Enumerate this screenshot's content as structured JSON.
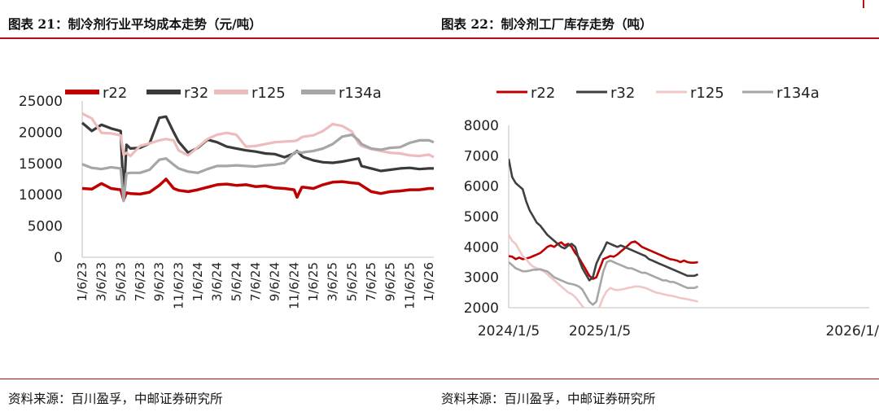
{
  "titles": {
    "left": "图表 21：制冷剂行业平均成本走势（元/吨）",
    "right": "图表 22：制冷剂工厂库存走势（吨）"
  },
  "sources": {
    "left": "资料来源：百川盈孚，中邮证券研究所",
    "right": "资料来源：百川盈孚，中邮证券研究所"
  },
  "chart_data": [
    {
      "type": "line",
      "title": "图表 21：制冷剂行业平均成本走势（元/吨）",
      "ylim": [
        0,
        25000
      ],
      "yticks": [
        "0",
        "5000",
        "10000",
        "15000",
        "20000",
        "25000"
      ],
      "xticks": [
        "1/6/23",
        "3/6/23",
        "5/6/23",
        "7/6/23",
        "9/6/23",
        "11/6/23",
        "1/6/24",
        "3/6/24",
        "5/6/24",
        "7/6/24",
        "9/6/24",
        "11/6/24",
        "1/6/25",
        "3/6/25",
        "5/6/25",
        "7/6/25",
        "9/6/25",
        "11/6/25",
        "1/6/26"
      ],
      "x_months": [
        0,
        1,
        2,
        3,
        4,
        4.3,
        4.6,
        5,
        6,
        7,
        8,
        8.7,
        9.5,
        10,
        11,
        12,
        13,
        14,
        15,
        16,
        17,
        18,
        19,
        20,
        21,
        22,
        22.3,
        22.8,
        23,
        24,
        25,
        26,
        27,
        28,
        28.7,
        29,
        30,
        31,
        32,
        33,
        34,
        35,
        36,
        36.5
      ],
      "series": [
        {
          "name": "r22",
          "color": "#c00000",
          "values": [
            11000,
            10900,
            11800,
            11000,
            10800,
            9200,
            10300,
            10200,
            10100,
            10400,
            11500,
            12500,
            11000,
            10700,
            10500,
            10800,
            11200,
            11600,
            11700,
            11500,
            11600,
            11300,
            11400,
            11100,
            11000,
            10800,
            9600,
            11200,
            11200,
            11000,
            11600,
            12000,
            12100,
            11900,
            11800,
            11500,
            10500,
            10200,
            10500,
            10600,
            10800,
            10800,
            11000,
            11000
          ]
        },
        {
          "name": "r32",
          "color": "#3a3a3a",
          "values": [
            21500,
            20200,
            21200,
            20600,
            20200,
            9400,
            18000,
            17400,
            17500,
            18200,
            22300,
            22500,
            20000,
            18500,
            16700,
            17500,
            18800,
            18400,
            17700,
            17400,
            17100,
            16900,
            16600,
            16500,
            16000,
            16600,
            17000,
            16200,
            16000,
            15500,
            15200,
            15100,
            15300,
            15600,
            15800,
            14600,
            14200,
            13800,
            14000,
            14200,
            14300,
            14100,
            14200,
            14200
          ]
        },
        {
          "name": "r125",
          "color": "#edbcbc",
          "values": [
            23000,
            22200,
            19900,
            19800,
            19500,
            16400,
            16700,
            16200,
            17800,
            18200,
            18700,
            18900,
            18700,
            17100,
            16300,
            17600,
            18900,
            19600,
            19900,
            19600,
            17700,
            17800,
            18100,
            18400,
            18500,
            18600,
            18700,
            19200,
            19300,
            19500,
            20200,
            21300,
            21000,
            20100,
            18200,
            17800,
            17300,
            17000,
            16700,
            16600,
            16300,
            16200,
            16400,
            16000
          ]
        },
        {
          "name": "r134a",
          "color": "#a6a6a6",
          "values": [
            14900,
            14300,
            14100,
            14400,
            14200,
            9000,
            13400,
            13500,
            13500,
            14000,
            15600,
            15800,
            14800,
            14200,
            13700,
            13500,
            14100,
            14600,
            14600,
            14700,
            14600,
            14500,
            14700,
            14800,
            15100,
            16700,
            16900,
            16700,
            16800,
            17000,
            17400,
            18100,
            19300,
            19600,
            18700,
            18100,
            17400,
            17200,
            17500,
            17600,
            18300,
            18700,
            18700,
            18400
          ]
        }
      ]
    },
    {
      "type": "line",
      "title": "图表 22：制冷剂工厂库存走势（吨）",
      "ylim": [
        2000,
        8000
      ],
      "yticks": [
        "2000",
        "3000",
        "4000",
        "5000",
        "6000",
        "7000",
        "8000"
      ],
      "xticks": [
        "2024/1/5",
        "2025/1/5",
        "2026/1/"
      ],
      "x_weeks": [
        0,
        2,
        4,
        6,
        8,
        10,
        12,
        14,
        16,
        18,
        20,
        22,
        24,
        26,
        28,
        30,
        32,
        34,
        36,
        38,
        40,
        42,
        44,
        46,
        48,
        50,
        52,
        54,
        56,
        58,
        60,
        62,
        64,
        66,
        68,
        70,
        72,
        74,
        76,
        78,
        80,
        82,
        84,
        86,
        88,
        90,
        92,
        94,
        96,
        98,
        100,
        102,
        104,
        106,
        108
      ],
      "series": [
        {
          "name": "r22",
          "color": "#c00000",
          "values": [
            3700,
            3680,
            3600,
            3650,
            3600,
            3620,
            3650,
            3700,
            3750,
            3800,
            3900,
            4000,
            4050,
            4000,
            4100,
            4150,
            4050,
            4100,
            4000,
            3800,
            3650,
            3450,
            3250,
            3050,
            2950,
            3000,
            3300,
            3600,
            3650,
            3700,
            3680,
            3750,
            3850,
            3950,
            4050,
            4150,
            4180,
            4100,
            4000,
            3950,
            3900,
            3850,
            3800,
            3750,
            3700,
            3650,
            3600,
            3580,
            3550,
            3500,
            3550,
            3500,
            3480,
            3480,
            3500
          ]
        },
        {
          "name": "r32",
          "color": "#404040",
          "values": [
            6900,
            6300,
            6100,
            6000,
            5900,
            5500,
            5200,
            5000,
            4800,
            4700,
            4550,
            4400,
            4300,
            4200,
            4100,
            4000,
            3950,
            4050,
            4100,
            4000,
            3600,
            3300,
            3100,
            2900,
            3000,
            3450,
            3700,
            3900,
            4150,
            4100,
            4050,
            4000,
            4050,
            4000,
            3950,
            3900,
            3850,
            3800,
            3750,
            3700,
            3600,
            3550,
            3500,
            3450,
            3400,
            3350,
            3300,
            3250,
            3200,
            3150,
            3100,
            3050,
            3050,
            3050,
            3100
          ]
        },
        {
          "name": "r125",
          "color": "#f0c6c6",
          "values": [
            4400,
            4200,
            4100,
            3900,
            3700,
            3600,
            3450,
            3350,
            3300,
            3250,
            3200,
            3100,
            3000,
            2900,
            2800,
            2700,
            2600,
            2500,
            2450,
            2350,
            2200,
            2050,
            1900,
            1800,
            1700,
            1800,
            2050,
            2350,
            2550,
            2650,
            2600,
            2580,
            2600,
            2620,
            2650,
            2670,
            2700,
            2700,
            2680,
            2650,
            2600,
            2550,
            2500,
            2480,
            2450,
            2420,
            2400,
            2380,
            2350,
            2320,
            2300,
            2280,
            2250,
            2230,
            2200
          ]
        },
        {
          "name": "r134a",
          "color": "#a6a6a6",
          "values": [
            3500,
            3400,
            3300,
            3250,
            3200,
            3200,
            3220,
            3250,
            3250,
            3270,
            3230,
            3200,
            3100,
            3000,
            2950,
            2900,
            2850,
            2800,
            2780,
            2750,
            2700,
            2600,
            2400,
            2200,
            2100,
            2200,
            2700,
            3200,
            3500,
            3550,
            3500,
            3450,
            3400,
            3350,
            3300,
            3300,
            3250,
            3200,
            3150,
            3150,
            3100,
            3050,
            3000,
            2950,
            2900,
            2900,
            2850,
            2850,
            2800,
            2750,
            2700,
            2650,
            2650,
            2650,
            2700
          ]
        }
      ]
    }
  ]
}
